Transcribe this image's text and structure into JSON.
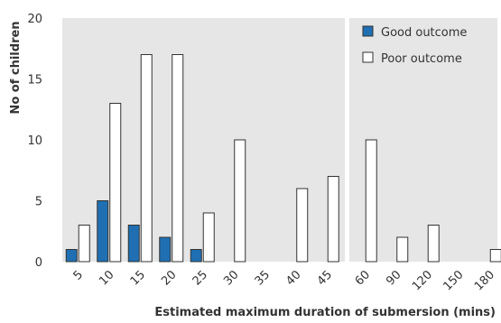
{
  "chart_data": {
    "type": "bar",
    "xlabel": "Estimated maximum duration of submersion (mins)",
    "ylabel": "No of children",
    "ylim": [
      0,
      20
    ],
    "yticks": [
      "0",
      "5",
      "10",
      "15",
      "20"
    ],
    "grid": false,
    "legend_position": "top-right",
    "panels": [
      {
        "categories": [
          "5",
          "10",
          "15",
          "20",
          "25",
          "30",
          "35",
          "40",
          "45"
        ]
      },
      {
        "categories": [
          "60",
          "90",
          "120",
          "150",
          "180"
        ]
      }
    ],
    "series": [
      {
        "name": "Good outcome",
        "color": "#1f6fb2",
        "values": [
          1,
          5,
          3,
          2,
          1,
          0,
          0,
          0,
          0,
          0,
          0,
          0,
          0,
          0
        ]
      },
      {
        "name": "Poor outcome",
        "color": "#ffffff",
        "values": [
          3,
          13,
          17,
          17,
          4,
          10,
          0,
          6,
          7,
          10,
          2,
          3,
          0,
          1
        ]
      }
    ],
    "colors": {
      "panel_background": "#e6e6e6",
      "bar_stroke": "#333333",
      "separator": "#ffffff"
    }
  }
}
